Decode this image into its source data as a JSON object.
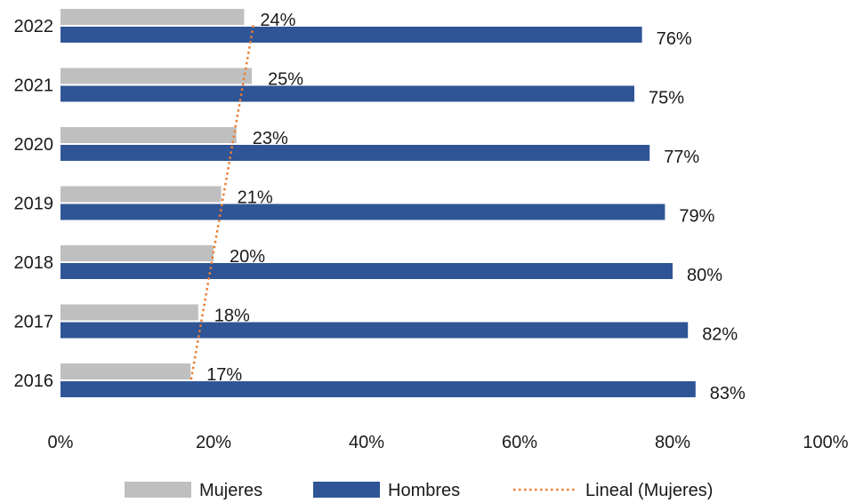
{
  "chart_data": {
    "type": "bar",
    "orientation": "horizontal",
    "categories": [
      "2016",
      "2017",
      "2018",
      "2019",
      "2020",
      "2021",
      "2022"
    ],
    "series": [
      {
        "name": "Mujeres",
        "values": [
          17,
          18,
          20,
          21,
          23,
          25,
          24
        ],
        "color": "#bfbfbf"
      },
      {
        "name": "Hombres",
        "values": [
          83,
          82,
          80,
          79,
          77,
          75,
          76
        ],
        "color": "#2f5597"
      }
    ],
    "trendline": {
      "name": "Lineal (Mujeres)",
      "series": "Mujeres",
      "type": "linear",
      "color": "#ed7d31",
      "style": "dotted"
    },
    "value_suffix": "%",
    "x_ticks": [
      "0%",
      "20%",
      "40%",
      "60%",
      "80%",
      "100%"
    ],
    "xlim": [
      0,
      100
    ],
    "title": "",
    "xlabel": "",
    "ylabel": "",
    "grid": false,
    "legend_position": "bottom"
  }
}
